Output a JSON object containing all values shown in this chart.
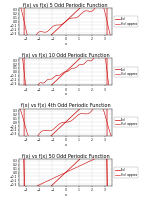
{
  "subplots": [
    {
      "title": "f(x) vs f(x) 5 Odd Periodic Function",
      "n": 5,
      "xlim": [
        -3.5,
        3.5
      ],
      "ylim": [
        -0.35,
        0.35
      ],
      "xticks": [
        -3,
        -2,
        -1,
        0,
        1,
        2,
        3
      ],
      "yticks": [
        -0.3,
        -0.2,
        -0.1,
        0,
        0.1,
        0.2,
        0.3
      ]
    },
    {
      "title": "f(x) vs f(x) 10 Odd Periodic Function",
      "n": 10,
      "xlim": [
        -3.5,
        3.5
      ],
      "ylim": [
        -0.35,
        0.35
      ],
      "xticks": [
        -3,
        -2,
        -1,
        0,
        1,
        2,
        3
      ],
      "yticks": [
        -0.3,
        -0.2,
        -0.1,
        0,
        0.1,
        0.2,
        0.3
      ]
    },
    {
      "title": "f(x) vs f(x) 4th Odd Periodic Function",
      "n": 4,
      "xlim": [
        -3.5,
        3.5
      ],
      "ylim": [
        -0.35,
        0.35
      ],
      "xticks": [
        -3,
        -2,
        -1,
        0,
        1,
        2,
        3
      ],
      "yticks": [
        -0.3,
        -0.2,
        -0.1,
        0,
        0.1,
        0.2,
        0.3
      ]
    },
    {
      "title": "f(x) vs f(x) 50 Odd Periodic Function",
      "n": 50,
      "xlim": [
        -3.5,
        3.5
      ],
      "ylim": [
        -0.35,
        0.35
      ],
      "xticks": [
        -3,
        -2,
        -1,
        0,
        1,
        2,
        3
      ],
      "yticks": [
        -0.3,
        -0.2,
        -0.1,
        0,
        0.1,
        0.2,
        0.3
      ]
    }
  ],
  "fourier_color": "#cc0000",
  "actual_color": "#cc0000",
  "background_color": "#ffffff",
  "grid_color": "#dddddd",
  "title_fontsize": 3.5,
  "tick_fontsize": 2.2,
  "label_fontsize": 2.5,
  "legend_fontsize": 2.2,
  "line_width": 0.5,
  "L": 3.141592653589793
}
